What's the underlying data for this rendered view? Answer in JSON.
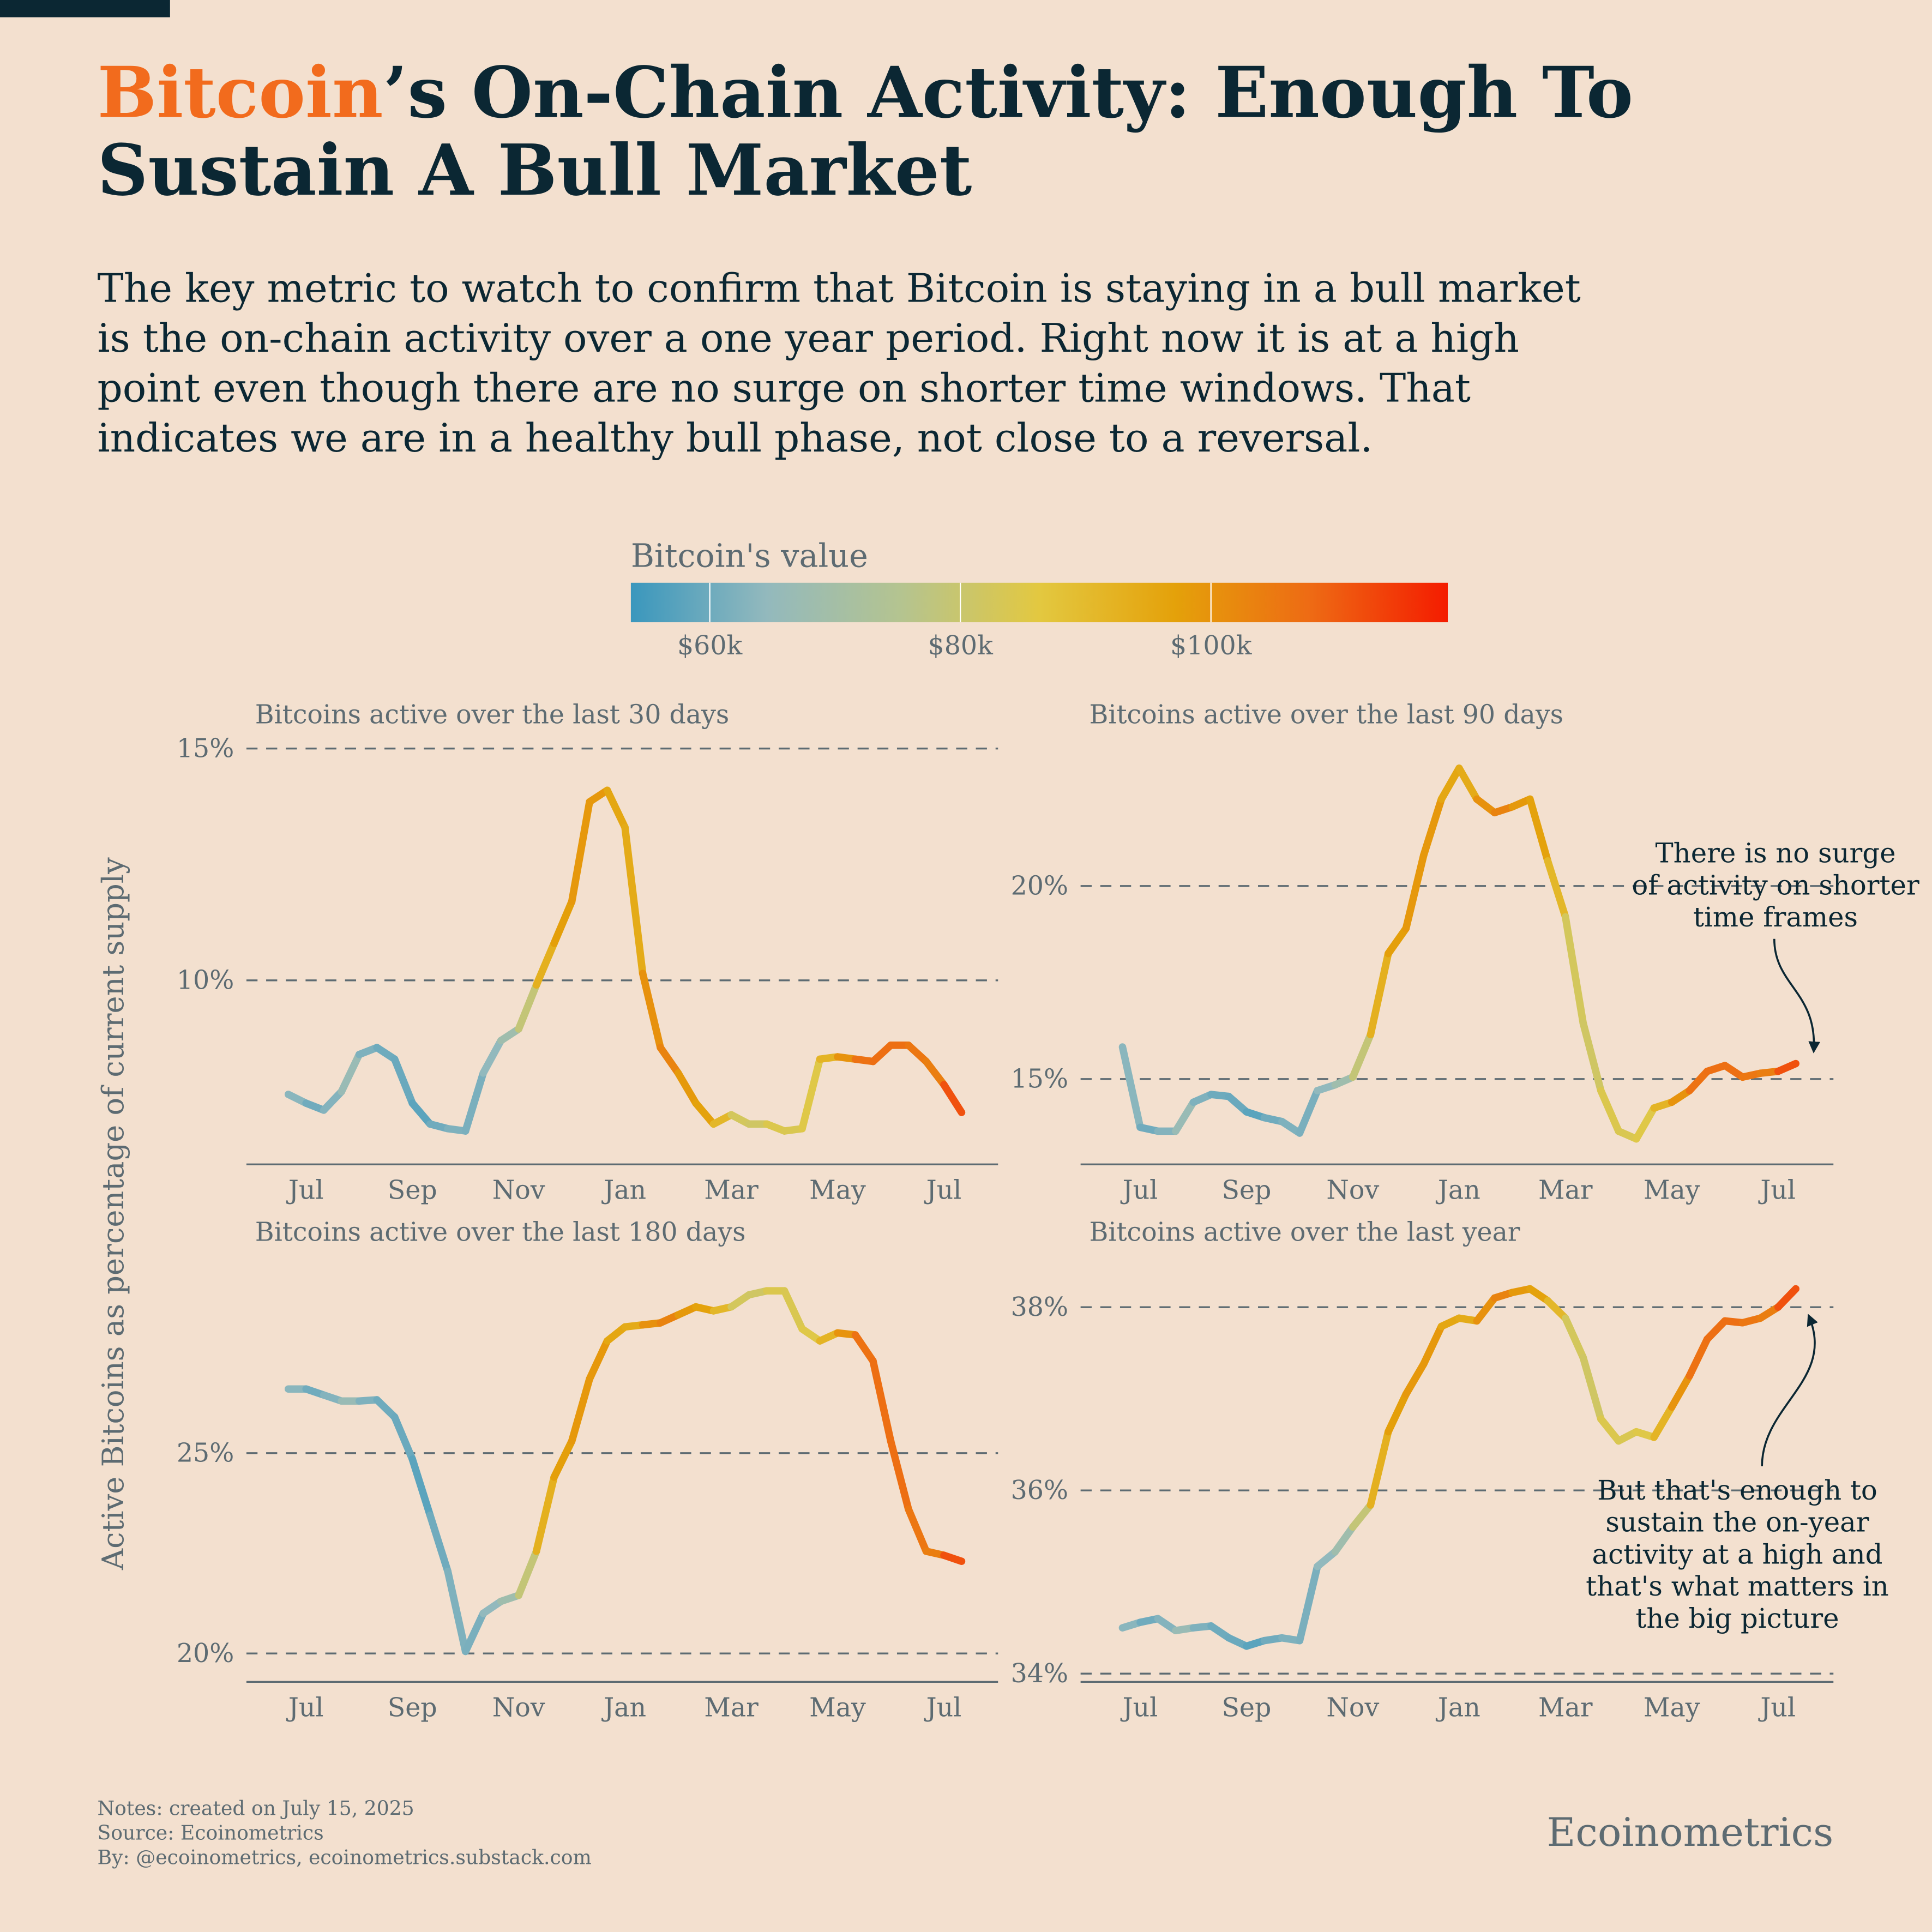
{
  "header": {
    "title_highlight": "Bitcoin",
    "title_lines": [
      "’s On-Chain Activity: Enough To",
      "Sustain A Bull Market"
    ],
    "subtitle_lines": [
      "The key metric to watch to confirm that Bitcoin is staying in a bull market",
      "is the on-chain activity over a one year period. Right now it is at a high",
      "point even though there are no surge on shorter time windows. That",
      "indicates we are in a healthy bull phase, not close to a reversal."
    ]
  },
  "colorbar": {
    "title": "Bitcoin's value",
    "lim": [
      53700,
      118900
    ],
    "ticks": [
      {
        "value": 60000,
        "label": "$60k"
      },
      {
        "value": 80000,
        "label": "$80k"
      },
      {
        "value": 100000,
        "label": "$100k"
      }
    ],
    "colors": [
      "#3a97bd",
      "#93b9bd",
      "#b5c48f",
      "#e3c840",
      "#e4a10a",
      "#ee6a14",
      "#f41c00"
    ],
    "values": [
      64000,
      63000,
      57500,
      68000,
      65000,
      59000,
      61000,
      58000,
      57500,
      63000,
      61000,
      62000,
      67000,
      69500,
      88000,
      98000,
      97000,
      101000,
      97000,
      94000,
      94500,
      106000,
      100000,
      97500,
      96000,
      86000,
      79000,
      84000,
      85000,
      83000,
      87500,
      96000,
      104000,
      109000,
      105000,
      109000,
      102000,
      106000,
      117000
    ]
  },
  "y_axis_label": "Active Bitcoins as percentage of current supply",
  "chart_data": [
    {
      "type": "line",
      "title": "Bitcoins active over the last 30 days",
      "categories": [
        null,
        "Jul",
        null,
        null,
        null,
        null,
        null,
        "Sep",
        null,
        null,
        null,
        null,
        null,
        "Nov",
        null,
        null,
        null,
        null,
        null,
        "Jan",
        null,
        null,
        null,
        null,
        null,
        "Mar",
        null,
        null,
        null,
        null,
        null,
        "May",
        null,
        null,
        null,
        null,
        null,
        "Jul",
        null
      ],
      "values": [
        7.54,
        7.35,
        7.2,
        7.6,
        8.4,
        8.55,
        8.3,
        7.35,
        6.9,
        6.8,
        6.75,
        8.0,
        8.7,
        8.95,
        9.9,
        10.8,
        11.7,
        13.85,
        14.1,
        13.3,
        10.15,
        8.55,
        8.0,
        7.35,
        6.9,
        7.1,
        6.9,
        6.9,
        6.75,
        6.8,
        8.3,
        8.35,
        8.3,
        8.25,
        8.6,
        8.6,
        8.25,
        7.75,
        7.15
      ],
      "ylim": [
        6.03,
        15.2
      ],
      "yticks": [
        {
          "value": 10,
          "label": "10%"
        },
        {
          "value": 15,
          "label": "15%"
        }
      ],
      "grid": true
    },
    {
      "type": "line",
      "title": "Bitcoins active over the last 90 days",
      "categories": [
        null,
        "Jul",
        null,
        null,
        null,
        null,
        null,
        "Sep",
        null,
        null,
        null,
        null,
        null,
        "Nov",
        null,
        null,
        null,
        null,
        null,
        "Jan",
        null,
        null,
        null,
        null,
        null,
        "Mar",
        null,
        null,
        null,
        null,
        null,
        "May",
        null,
        null,
        null,
        null,
        null,
        "Jul",
        null
      ],
      "values": [
        15.83,
        13.75,
        13.65,
        13.65,
        14.4,
        14.6,
        14.55,
        14.15,
        14.0,
        13.9,
        13.6,
        14.7,
        14.85,
        15.05,
        16.15,
        18.25,
        18.9,
        20.8,
        22.25,
        23.05,
        22.25,
        21.9,
        22.05,
        22.25,
        20.65,
        19.2,
        16.45,
        14.7,
        13.65,
        13.45,
        14.25,
        14.4,
        14.7,
        15.2,
        15.35,
        15.05,
        15.15,
        15.2,
        15.4
      ],
      "ylim": [
        12.79,
        23.8
      ],
      "yticks": [
        {
          "value": 15,
          "label": "15%"
        },
        {
          "value": 20,
          "label": "20%"
        }
      ],
      "grid": true,
      "annotation_lines": [
        "There is no surge",
        "of activity on shorter",
        "time frames"
      ]
    },
    {
      "type": "line",
      "title": "Bitcoins active over the last 180 days",
      "categories": [
        null,
        "Jul",
        null,
        null,
        null,
        null,
        null,
        "Sep",
        null,
        null,
        null,
        null,
        null,
        "Nov",
        null,
        null,
        null,
        null,
        null,
        "Jan",
        null,
        null,
        null,
        null,
        null,
        "Mar",
        null,
        null,
        null,
        null,
        null,
        "May",
        null,
        null,
        null,
        null,
        null,
        "Jul",
        null
      ],
      "values": [
        26.6,
        26.6,
        26.45,
        26.3,
        26.3,
        26.33,
        25.9,
        24.85,
        23.45,
        22.05,
        20.05,
        21.0,
        21.3,
        21.45,
        22.55,
        24.4,
        25.3,
        26.85,
        27.8,
        28.15,
        28.2,
        28.25,
        28.45,
        28.65,
        28.55,
        28.65,
        28.95,
        29.05,
        29.05,
        28.1,
        27.8,
        28.0,
        27.95,
        27.3,
        25.3,
        23.6,
        22.55,
        22.45,
        22.3
      ],
      "ylim": [
        19.29,
        29.9
      ],
      "yticks": [
        {
          "value": 20,
          "label": "20%"
        },
        {
          "value": 25,
          "label": "25%"
        }
      ],
      "grid": true
    },
    {
      "type": "line",
      "title": "Bitcoins active over the last year",
      "categories": [
        null,
        "Jul",
        null,
        null,
        null,
        null,
        null,
        "Sep",
        null,
        null,
        null,
        null,
        null,
        "Nov",
        null,
        null,
        null,
        null,
        null,
        "Jan",
        null,
        null,
        null,
        null,
        null,
        "Mar",
        null,
        null,
        null,
        null,
        null,
        "May",
        null,
        null,
        null,
        null,
        null,
        "Jul",
        null
      ],
      "values": [
        34.5,
        34.56,
        34.6,
        34.47,
        34.5,
        34.52,
        34.39,
        34.3,
        34.36,
        34.39,
        34.36,
        35.17,
        35.33,
        35.6,
        35.84,
        36.64,
        37.05,
        37.38,
        37.79,
        37.88,
        37.85,
        38.1,
        38.16,
        38.2,
        38.07,
        37.88,
        37.45,
        36.78,
        36.54,
        36.64,
        36.58,
        36.91,
        37.25,
        37.65,
        37.85,
        37.83,
        37.88,
        38.0,
        38.2
      ],
      "ylim": [
        33.91,
        38.55
      ],
      "yticks": [
        {
          "value": 34,
          "label": "34%"
        },
        {
          "value": 36,
          "label": "36%"
        },
        {
          "value": 38,
          "label": "38%"
        }
      ],
      "grid": true,
      "annotation_lines": [
        "But that's enough to",
        "sustain the on-year",
        "activity at a high and",
        "that's what matters in",
        "the big picture"
      ]
    }
  ],
  "footer": {
    "notes": [
      "Notes: created on July 15, 2025",
      "Source: Ecoinometrics",
      "By: @ecoinometrics, ecoinometrics.substack.com"
    ],
    "brand": "Ecoinometrics"
  }
}
